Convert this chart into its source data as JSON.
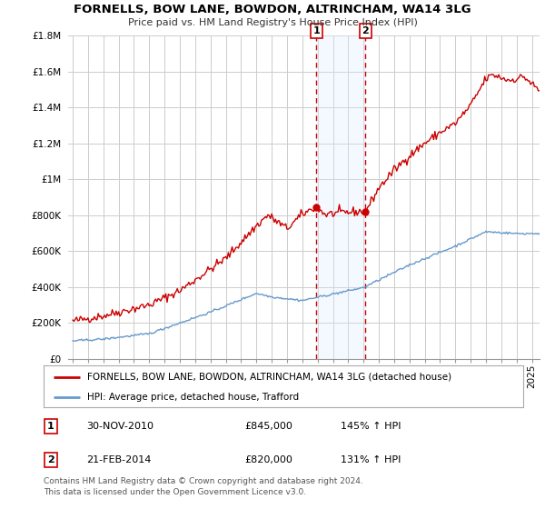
{
  "title": "FORNELLS, BOW LANE, BOWDON, ALTRINCHAM, WA14 3LG",
  "subtitle": "Price paid vs. HM Land Registry's House Price Index (HPI)",
  "ylim": [
    0,
    1800000
  ],
  "yticks": [
    0,
    200000,
    400000,
    600000,
    800000,
    1000000,
    1200000,
    1400000,
    1600000,
    1800000
  ],
  "ytick_labels": [
    "£0",
    "£200K",
    "£400K",
    "£600K",
    "£800K",
    "£1M",
    "£1.2M",
    "£1.4M",
    "£1.6M",
    "£1.8M"
  ],
  "xlim_start": 1994.7,
  "xlim_end": 2025.5,
  "marker1_x": 2010.917,
  "marker1_y": 845000,
  "marker2_x": 2014.125,
  "marker2_y": 820000,
  "red_line_color": "#cc0000",
  "blue_line_color": "#6699cc",
  "shade_color": "#ddeeff",
  "legend_label_red": "FORNELLS, BOW LANE, BOWDON, ALTRINCHAM, WA14 3LG (detached house)",
  "legend_label_blue": "HPI: Average price, detached house, Trafford",
  "marker1_date": "30-NOV-2010",
  "marker1_price": "£845,000",
  "marker1_hpi": "145% ↑ HPI",
  "marker2_date": "21-FEB-2014",
  "marker2_price": "£820,000",
  "marker2_hpi": "131% ↑ HPI",
  "footer": "Contains HM Land Registry data © Crown copyright and database right 2024.\nThis data is licensed under the Open Government Licence v3.0.",
  "background_color": "#ffffff",
  "grid_color": "#cccccc",
  "title_fontsize": 9.5,
  "subtitle_fontsize": 8,
  "tick_fontsize": 7.5,
  "legend_fontsize": 7.5
}
